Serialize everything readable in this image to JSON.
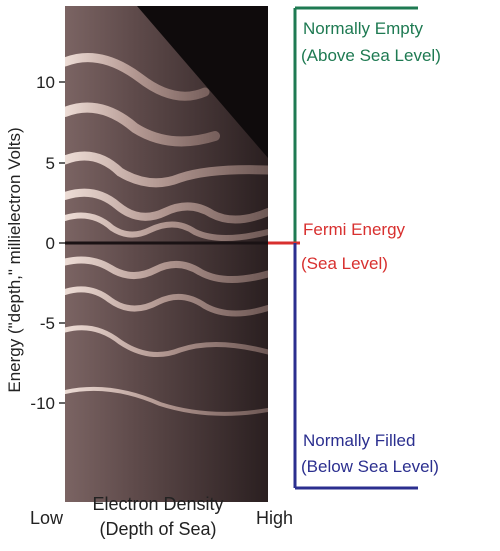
{
  "y_axis": {
    "label": "Energy (\"depth,\" millielectron Volts)",
    "ticks": [
      "10",
      "5",
      "0",
      "-5",
      "-10"
    ]
  },
  "x_axis": {
    "low_label": "Low",
    "title_line1": "Electron Density",
    "title_line2": "(Depth of Sea)",
    "high_label": "High"
  },
  "annotations": {
    "empty": {
      "line1": "Normally Empty",
      "line2": "(Above Sea Level)",
      "color": "#1e7a52"
    },
    "fermi": {
      "line1": "Fermi Energy",
      "line2": "(Sea Level)",
      "color": "#d8302f"
    },
    "filled": {
      "line1": "Normally Filled",
      "line2": "(Below Sea Level)",
      "color": "#2b2f8f"
    }
  },
  "colors": {
    "plot_background": "#0f0b0c",
    "band_color": "#d9bfb7"
  }
}
